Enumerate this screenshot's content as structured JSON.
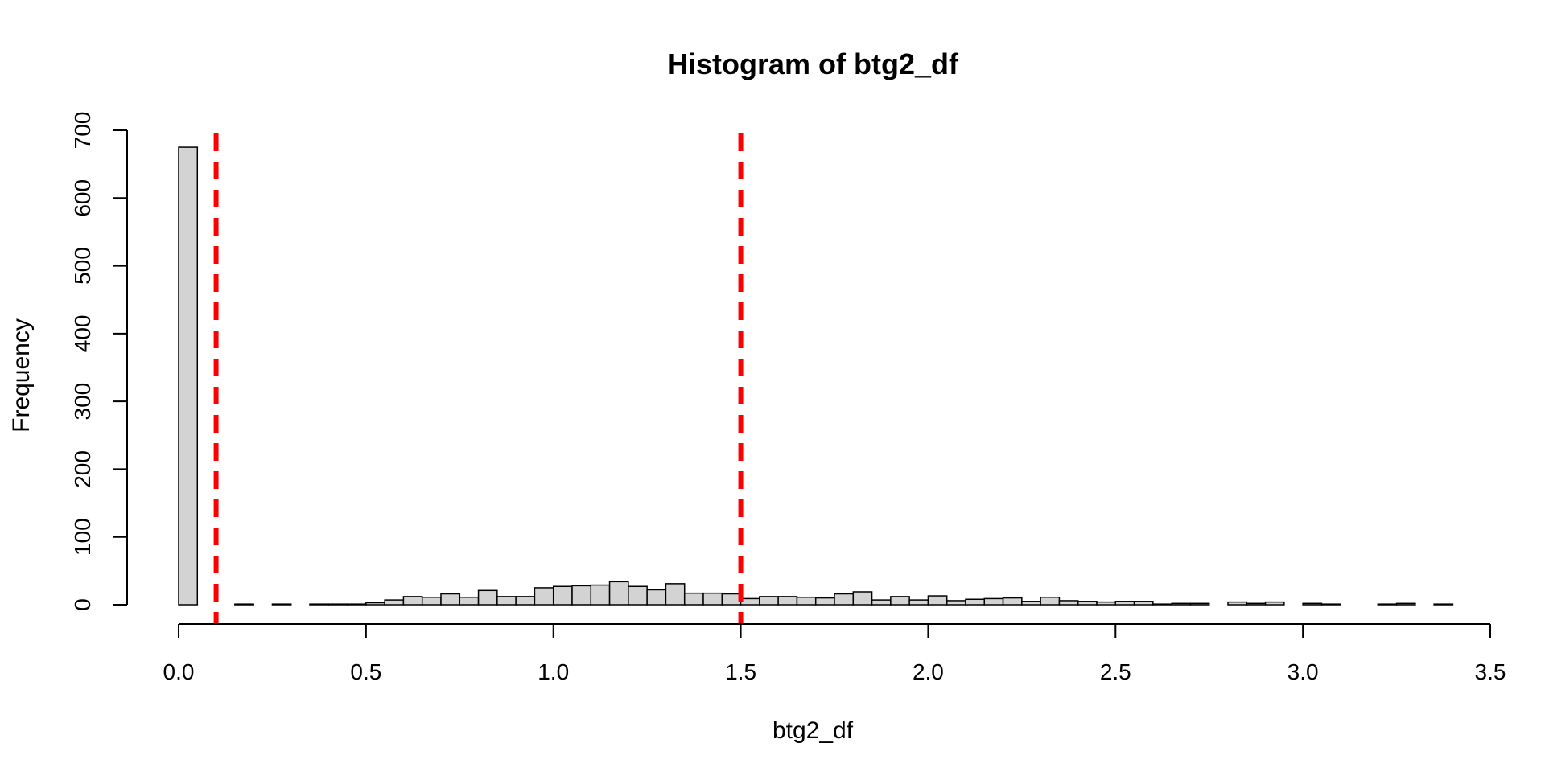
{
  "chart_data": {
    "type": "bar",
    "title": "Histogram of btg2_df",
    "xlabel": "btg2_df",
    "ylabel": "Frequency",
    "bin_width": 0.05,
    "x_start": 0.0,
    "values": [
      675,
      0,
      0,
      1,
      0,
      1,
      0,
      1,
      1,
      1,
      3,
      7,
      12,
      11,
      16,
      11,
      21,
      12,
      12,
      25,
      27,
      28,
      29,
      34,
      27,
      22,
      31,
      17,
      17,
      16,
      9,
      12,
      12,
      11,
      10,
      16,
      19,
      7,
      12,
      7,
      13,
      6,
      8,
      9,
      10,
      5,
      11,
      6,
      5,
      4,
      5,
      5,
      1,
      2,
      2,
      0,
      4,
      2,
      4,
      0,
      2,
      1,
      0,
      0,
      1,
      2,
      0,
      1
    ],
    "xlim": [
      0,
      3.5
    ],
    "ylim": [
      0,
      700
    ],
    "x_ticks": [
      0.0,
      0.5,
      1.0,
      1.5,
      2.0,
      2.5,
      3.0,
      3.5
    ],
    "x_tick_labels": [
      "0.0",
      "0.5",
      "1.0",
      "1.5",
      "2.0",
      "2.5",
      "3.0",
      "3.5"
    ],
    "y_ticks": [
      0,
      100,
      200,
      300,
      400,
      500,
      600,
      700
    ],
    "y_tick_labels": [
      "0",
      "100",
      "200",
      "300",
      "400",
      "500",
      "600",
      "700"
    ],
    "vlines": [
      0.1,
      1.5
    ],
    "bar_color": "#d3d3d3",
    "bar_edge_color": "#000000",
    "vline_color": "#ff0000",
    "grid": false
  }
}
